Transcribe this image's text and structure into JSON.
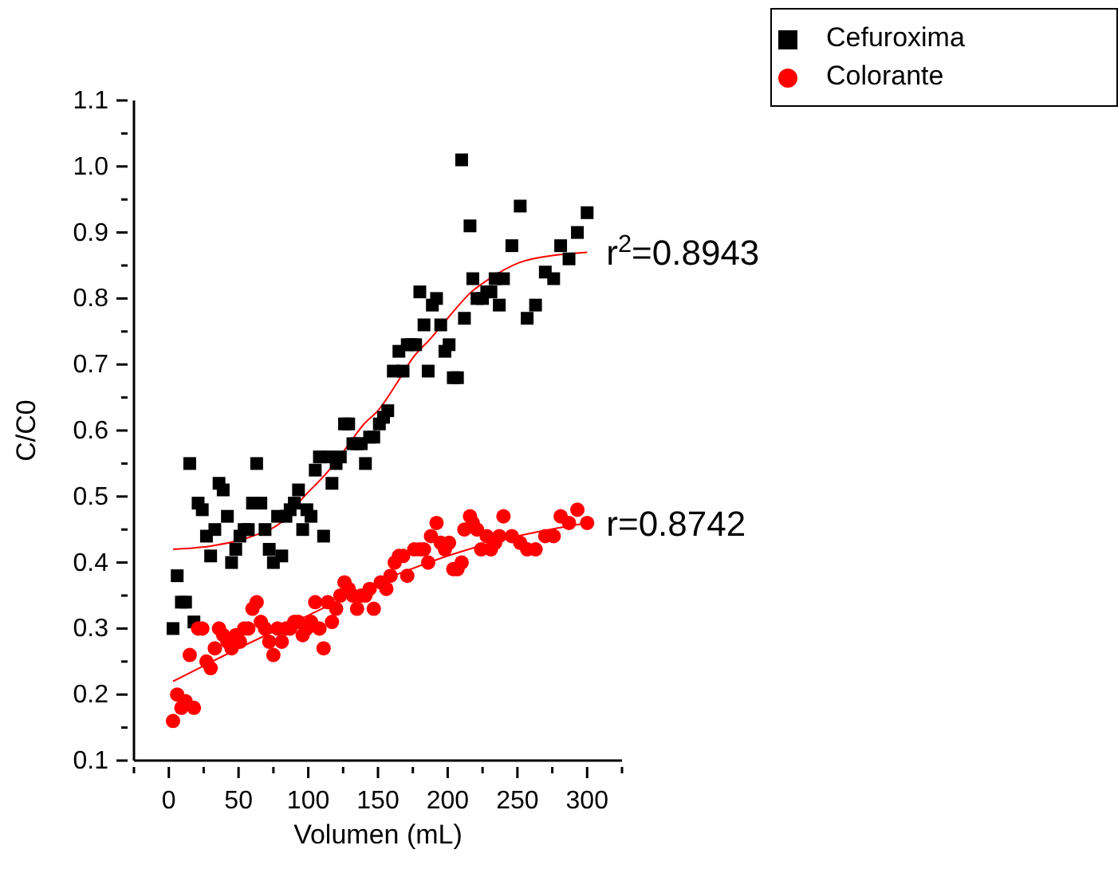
{
  "chart_data": {
    "type": "scatter",
    "xlabel": "Volumen (mL)",
    "ylabel": "C/C0",
    "xlim": [
      -25,
      325
    ],
    "ylim": [
      0.1,
      1.1
    ],
    "xticks": [
      {
        "value": -25,
        "label": null
      },
      0,
      {
        "value": 25,
        "label": null
      },
      50,
      {
        "value": 75,
        "label": null
      },
      100,
      {
        "value": 125,
        "label": null
      },
      150,
      {
        "value": 175,
        "label": null
      },
      200,
      {
        "value": 225,
        "label": null
      },
      250,
      {
        "value": 275,
        "label": null
      },
      300,
      {
        "value": 325,
        "label": null
      }
    ],
    "yticks": [
      0.1,
      {
        "value": 0.15,
        "label": null
      },
      0.2,
      {
        "value": 0.25,
        "label": null
      },
      0.3,
      {
        "value": 0.35,
        "label": null
      },
      0.4,
      {
        "value": 0.45,
        "label": null
      },
      0.5,
      {
        "value": 0.55,
        "label": null
      },
      0.6,
      {
        "value": 0.65,
        "label": null
      },
      0.7,
      {
        "value": 0.75,
        "label": null
      },
      0.8,
      {
        "value": 0.85,
        "label": null
      },
      0.9,
      {
        "value": 0.95,
        "label": null
      },
      {
        "value": 1,
        "label": "1.0"
      },
      {
        "value": 1.05,
        "label": null
      },
      1.1
    ],
    "legend": "top right",
    "grid": false,
    "series": [
      {
        "name": "Cefuroxima",
        "color": "#000000",
        "marker": "square",
        "x": [
          3,
          6,
          9,
          12,
          15,
          18,
          21,
          24,
          27,
          30,
          33,
          36,
          39,
          42,
          45,
          48,
          51,
          54,
          57,
          60,
          63,
          66,
          69,
          72,
          75,
          78,
          81,
          84,
          87,
          90,
          93,
          96,
          99,
          102,
          105,
          108,
          111,
          114,
          117,
          120,
          123,
          126,
          129,
          132,
          135,
          138,
          141,
          144,
          147,
          151,
          154,
          157,
          161,
          165,
          168,
          171,
          174,
          177,
          180,
          183,
          186,
          189,
          192,
          195,
          198,
          201,
          204,
          207,
          210,
          212,
          216,
          218,
          221,
          225,
          228,
          231,
          234,
          237,
          240,
          246,
          252,
          257,
          263,
          270,
          276,
          281,
          287,
          293,
          300
        ],
        "values": [
          0.3,
          0.38,
          0.34,
          0.34,
          0.55,
          0.31,
          0.49,
          0.48,
          0.44,
          0.41,
          0.45,
          0.52,
          0.51,
          0.47,
          0.4,
          0.42,
          0.44,
          0.45,
          0.45,
          0.49,
          0.55,
          0.49,
          0.45,
          0.42,
          0.4,
          0.47,
          0.41,
          0.47,
          0.48,
          0.49,
          0.51,
          0.45,
          0.48,
          0.47,
          0.54,
          0.56,
          0.44,
          0.56,
          0.52,
          0.55,
          0.56,
          0.61,
          0.61,
          0.58,
          0.58,
          0.58,
          0.55,
          0.59,
          0.59,
          0.61,
          0.62,
          0.63,
          0.69,
          0.72,
          0.69,
          0.73,
          0.73,
          0.73,
          0.81,
          0.76,
          0.69,
          0.79,
          0.8,
          0.76,
          0.72,
          0.73,
          0.68,
          0.68,
          1.01,
          0.77,
          0.91,
          0.83,
          0.8,
          0.8,
          0.81,
          0.81,
          0.83,
          0.79,
          0.83,
          0.88,
          0.94,
          0.77,
          0.79,
          0.84,
          0.83,
          0.88,
          0.86,
          0.9,
          0.93
        ]
      },
      {
        "name": "Colorante",
        "color": "#ff0000",
        "marker": "circle",
        "x": [
          3,
          6,
          9,
          12,
          15,
          18,
          21,
          24,
          27,
          30,
          33,
          36,
          39,
          42,
          45,
          48,
          51,
          54,
          57,
          60,
          63,
          66,
          69,
          72,
          75,
          78,
          81,
          84,
          87,
          90,
          93,
          96,
          99,
          102,
          105,
          108,
          111,
          114,
          117,
          120,
          123,
          126,
          129,
          132,
          135,
          138,
          141,
          144,
          147,
          152,
          156,
          159,
          162,
          165,
          168,
          171,
          176,
          180,
          183,
          186,
          188,
          192,
          195,
          198,
          201,
          204,
          207,
          210,
          212,
          216,
          218,
          221,
          224,
          228,
          231,
          234,
          237,
          240,
          246,
          252,
          257,
          263,
          270,
          276,
          281,
          287,
          293,
          300
        ],
        "values": [
          0.16,
          0.2,
          0.18,
          0.19,
          0.26,
          0.18,
          0.3,
          0.3,
          0.25,
          0.24,
          0.27,
          0.3,
          0.29,
          0.28,
          0.27,
          0.29,
          0.28,
          0.3,
          0.3,
          0.33,
          0.34,
          0.31,
          0.3,
          0.28,
          0.26,
          0.3,
          0.28,
          0.3,
          0.3,
          0.31,
          0.31,
          0.29,
          0.3,
          0.31,
          0.34,
          0.3,
          0.27,
          0.34,
          0.31,
          0.33,
          0.35,
          0.37,
          0.36,
          0.35,
          0.33,
          0.35,
          0.35,
          0.36,
          0.33,
          0.37,
          0.36,
          0.38,
          0.4,
          0.41,
          0.41,
          0.38,
          0.42,
          0.42,
          0.42,
          0.4,
          0.44,
          0.46,
          0.43,
          0.42,
          0.43,
          0.39,
          0.39,
          0.4,
          0.45,
          0.47,
          0.46,
          0.45,
          0.42,
          0.44,
          0.42,
          0.43,
          0.44,
          0.47,
          0.44,
          0.43,
          0.42,
          0.42,
          0.44,
          0.44,
          0.47,
          0.46,
          0.48,
          0.46
        ]
      },
      {
        "type": "line",
        "color": "#ff0000",
        "marker": "none",
        "x": [
          3,
          30,
          60,
          80,
          97,
          115,
          128,
          140,
          150,
          163,
          175,
          188,
          200,
          217,
          230,
          251,
          275,
          300
        ],
        "values": [
          0.42,
          0.425,
          0.44,
          0.46,
          0.5,
          0.54,
          0.576,
          0.61,
          0.63,
          0.67,
          0.71,
          0.74,
          0.77,
          0.81,
          0.83,
          0.854,
          0.865,
          0.87
        ]
      },
      {
        "type": "line",
        "color": "#ff0000",
        "marker": "none",
        "x": [
          3,
          50,
          100,
          150,
          200,
          250,
          300
        ],
        "values": [
          0.22,
          0.27,
          0.32,
          0.37,
          0.41,
          0.44,
          0.46
        ]
      }
    ],
    "annotations": [
      {
        "text": "r$^{2}$=0.8943",
        "x": 300,
        "y": 0.87
      },
      {
        "text": "r=0.8742",
        "x": 300,
        "y": 0.46
      }
    ]
  }
}
